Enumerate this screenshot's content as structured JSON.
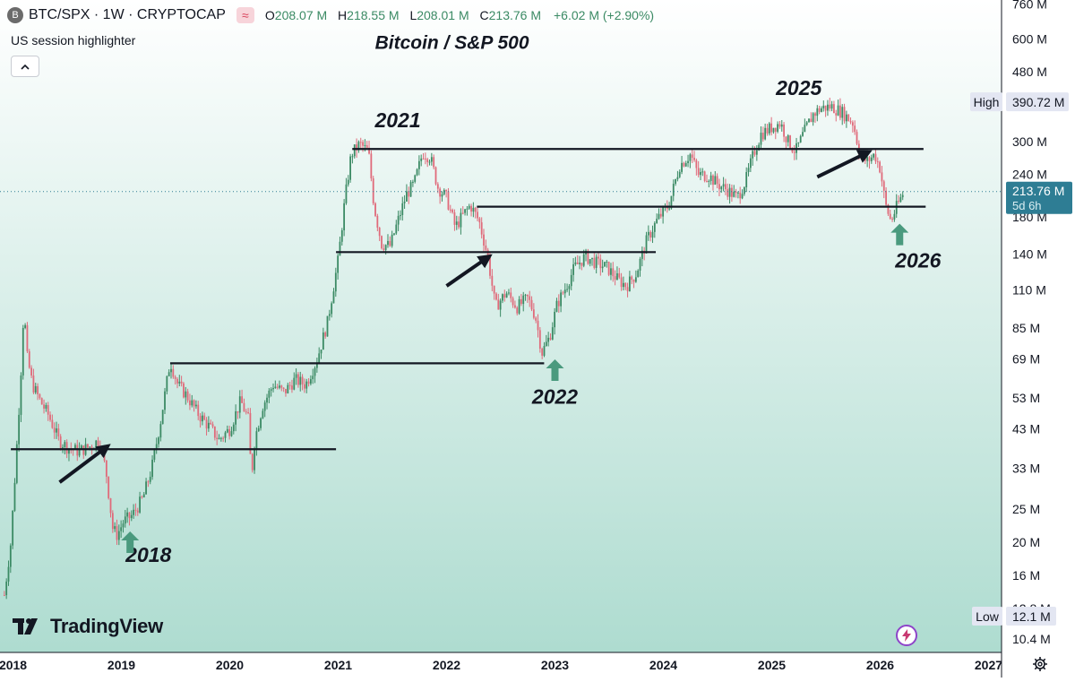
{
  "header": {
    "coin_letter": "B",
    "symbol": "BTC/SPX · 1W · CRYPTOCAP",
    "wave_icon": "≈",
    "open_label": "O",
    "open": "208.07 M",
    "high_label": "H",
    "high": "218.55 M",
    "low_label": "L",
    "low": "208.01 M",
    "close_label": "C",
    "close": "213.76 M",
    "change": "+6.02 M (+2.90%)"
  },
  "indicator": {
    "label": "US session highlighter"
  },
  "branding": {
    "logo_text": "TradingView"
  },
  "colors": {
    "up": "#3b8a64",
    "down": "#e06a7a",
    "accent": "#2e7d94",
    "arrow_up": "#4a9a7e",
    "bg_top": "#ffffff",
    "bg_bottom": "#aedcd0"
  },
  "chart_data": {
    "type": "candlestick",
    "title": "Bitcoin / S&P 500",
    "scale": "log",
    "ylim": [
      9.5,
      780
    ],
    "xlim": [
      2017.88,
      2027.12
    ],
    "y_ticks": [
      "760 M",
      "600 M",
      "480 M",
      "390.72 M",
      "300 M",
      "240 M",
      "213.76 M",
      "180 M",
      "140 M",
      "110 M",
      "85 M",
      "69 M",
      "53 M",
      "43 M",
      "33 M",
      "25 M",
      "20 M",
      "16 M",
      "12.8 M",
      "12.1 M",
      "10.4 M"
    ],
    "y_tick_values": [
      760,
      600,
      480,
      390.72,
      300,
      240,
      213.76,
      180,
      140,
      110,
      85,
      69,
      53,
      43,
      33,
      25,
      20,
      16,
      12.8,
      12.1,
      10.4
    ],
    "x_ticks": [
      "2018",
      "2019",
      "2020",
      "2021",
      "2022",
      "2023",
      "2024",
      "2025",
      "2026",
      "2027"
    ],
    "x_tick_values": [
      2018,
      2019,
      2020,
      2021,
      2022,
      2023,
      2024,
      2025,
      2026,
      2027
    ],
    "high": {
      "label": "High",
      "value": 390.72,
      "text": "390.72 M"
    },
    "low": {
      "label": "Low",
      "value": 12.1,
      "text": "12.1 M"
    },
    "last": {
      "value": 213.76,
      "text": "213.76 M",
      "countdown": "5d 6h"
    },
    "price_path": [
      [
        2017.92,
        14
      ],
      [
        2017.98,
        20
      ],
      [
        2018.03,
        36
      ],
      [
        2018.07,
        60
      ],
      [
        2018.1,
        98
      ],
      [
        2018.13,
        70
      ],
      [
        2018.18,
        58
      ],
      [
        2018.25,
        52
      ],
      [
        2018.33,
        47
      ],
      [
        2018.42,
        40
      ],
      [
        2018.5,
        38
      ],
      [
        2018.6,
        37
      ],
      [
        2018.7,
        38
      ],
      [
        2018.8,
        40
      ],
      [
        2018.86,
        32
      ],
      [
        2018.92,
        22
      ],
      [
        2018.96,
        21
      ],
      [
        2019.02,
        23
      ],
      [
        2019.1,
        24
      ],
      [
        2019.2,
        27
      ],
      [
        2019.28,
        33
      ],
      [
        2019.36,
        45
      ],
      [
        2019.45,
        68
      ],
      [
        2019.52,
        58
      ],
      [
        2019.6,
        54
      ],
      [
        2019.7,
        48
      ],
      [
        2019.8,
        44
      ],
      [
        2019.9,
        40
      ],
      [
        2020.0,
        43
      ],
      [
        2020.1,
        52
      ],
      [
        2020.17,
        46
      ],
      [
        2020.2,
        31
      ],
      [
        2020.23,
        40
      ],
      [
        2020.3,
        50
      ],
      [
        2020.4,
        58
      ],
      [
        2020.5,
        55
      ],
      [
        2020.6,
        60
      ],
      [
        2020.7,
        58
      ],
      [
        2020.8,
        68
      ],
      [
        2020.9,
        88
      ],
      [
        2021.0,
        135
      ],
      [
        2021.06,
        200
      ],
      [
        2021.12,
        275
      ],
      [
        2021.2,
        295
      ],
      [
        2021.28,
        280
      ],
      [
        2021.33,
        195
      ],
      [
        2021.4,
        150
      ],
      [
        2021.48,
        148
      ],
      [
        2021.55,
        175
      ],
      [
        2021.63,
        210
      ],
      [
        2021.7,
        225
      ],
      [
        2021.78,
        278
      ],
      [
        2021.85,
        270
      ],
      [
        2021.92,
        220
      ],
      [
        2022.0,
        205
      ],
      [
        2022.08,
        168
      ],
      [
        2022.15,
        182
      ],
      [
        2022.22,
        195
      ],
      [
        2022.3,
        175
      ],
      [
        2022.38,
        138
      ],
      [
        2022.45,
        98
      ],
      [
        2022.55,
        108
      ],
      [
        2022.65,
        98
      ],
      [
        2022.75,
        104
      ],
      [
        2022.82,
        92
      ],
      [
        2022.88,
        72
      ],
      [
        2022.95,
        80
      ],
      [
        2023.02,
        100
      ],
      [
        2023.1,
        112
      ],
      [
        2023.18,
        128
      ],
      [
        2023.28,
        138
      ],
      [
        2023.38,
        132
      ],
      [
        2023.48,
        128
      ],
      [
        2023.58,
        118
      ],
      [
        2023.66,
        113
      ],
      [
        2023.75,
        123
      ],
      [
        2023.85,
        155
      ],
      [
        2023.95,
        178
      ],
      [
        2024.05,
        195
      ],
      [
        2024.15,
        255
      ],
      [
        2024.25,
        275
      ],
      [
        2024.32,
        240
      ],
      [
        2024.42,
        238
      ],
      [
        2024.5,
        225
      ],
      [
        2024.6,
        215
      ],
      [
        2024.68,
        205
      ],
      [
        2024.76,
        230
      ],
      [
        2024.83,
        275
      ],
      [
        2024.9,
        315
      ],
      [
        2025.0,
        330
      ],
      [
        2025.08,
        340
      ],
      [
        2025.15,
        300
      ],
      [
        2025.22,
        280
      ],
      [
        2025.3,
        320
      ],
      [
        2025.38,
        360
      ],
      [
        2025.45,
        375
      ],
      [
        2025.55,
        380
      ],
      [
        2025.65,
        365
      ],
      [
        2025.75,
        340
      ],
      [
        2025.82,
        270
      ],
      [
        2025.88,
        262
      ],
      [
        2025.95,
        275
      ],
      [
        2026.0,
        250
      ],
      [
        2026.05,
        195
      ],
      [
        2026.1,
        175
      ],
      [
        2026.15,
        192
      ],
      [
        2026.22,
        213.76
      ]
    ],
    "support_lines": [
      {
        "x1": 2017.98,
        "x2": 2020.98,
        "y": 37.5
      },
      {
        "x1": 2019.45,
        "x2": 2022.9,
        "y": 67
      },
      {
        "x1": 2020.98,
        "x2": 2023.93,
        "y": 142
      },
      {
        "x1": 2022.28,
        "x2": 2026.42,
        "y": 193
      },
      {
        "x1": 2021.13,
        "x2": 2026.4,
        "y": 285
      }
    ],
    "annotations": [
      {
        "text": "2018",
        "x": 2019.25,
        "y": 17.5
      },
      {
        "text": "2021",
        "x": 2021.55,
        "y": 330
      },
      {
        "text": "2022",
        "x": 2023.0,
        "y": 51
      },
      {
        "text": "2025",
        "x": 2025.25,
        "y": 410
      },
      {
        "text": "2026",
        "x": 2026.35,
        "y": 128
      }
    ],
    "up_arrows": [
      {
        "x": 2019.08,
        "y": 20
      },
      {
        "x": 2023.0,
        "y": 64
      },
      {
        "x": 2026.18,
        "y": 160
      }
    ],
    "black_arrows": [
      {
        "x1": 2018.43,
        "y1": 30,
        "x2": 2018.86,
        "y2": 38
      },
      {
        "x1": 2022.0,
        "y1": 113,
        "x2": 2022.38,
        "y2": 137
      },
      {
        "x1": 2025.42,
        "y1": 236,
        "x2": 2025.88,
        "y2": 278
      }
    ]
  }
}
